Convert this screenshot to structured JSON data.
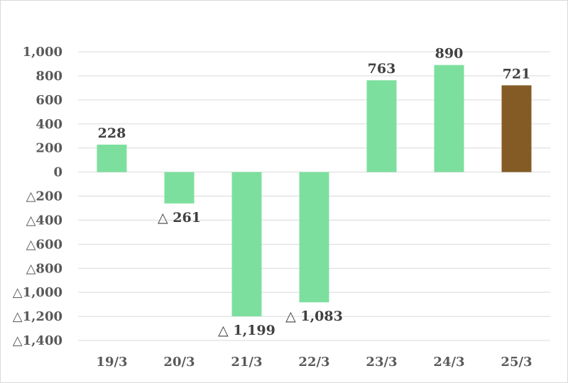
{
  "chart_data": {
    "type": "bar",
    "title": "",
    "xlabel": "",
    "ylabel": "",
    "categories": [
      "19/3",
      "20/3",
      "21/3",
      "22/3",
      "23/3",
      "24/3",
      "25/3"
    ],
    "values": [
      228,
      -261,
      -1199,
      -1083,
      763,
      890,
      721
    ],
    "value_labels": [
      "228",
      "△ 261",
      "△ 1,199",
      "△ 1,083",
      "763",
      "890",
      "721"
    ],
    "ylim": [
      -1400,
      1000
    ],
    "y_ticks": [
      1000,
      800,
      600,
      400,
      200,
      0,
      -200,
      -400,
      -600,
      -800,
      -1000,
      -1200,
      -1400
    ],
    "y_tick_labels": [
      "1,000",
      "800",
      "600",
      "400",
      "200",
      "0",
      "△200",
      "△400",
      "△600",
      "△800",
      "△1,000",
      "△1,200",
      "△1,400"
    ],
    "grid": true,
    "colors": {
      "bar": "#7ddf9e",
      "highlight_bar": "#845b25",
      "grid": "#d9d9d9",
      "tick_text": "#595959",
      "label_text": "#404040"
    },
    "highlight_index": 6
  }
}
